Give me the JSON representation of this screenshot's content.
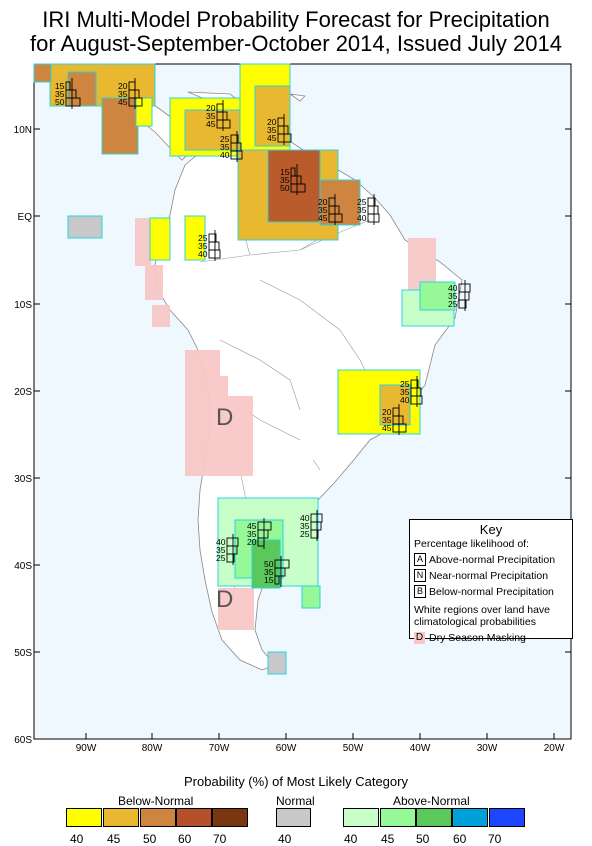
{
  "title": {
    "line1": "IRI Multi-Model Probability Forecast for Precipitation",
    "line2": "for August-September-October 2014, Issued July 2014"
  },
  "axes": {
    "lat_labels": [
      "10N",
      "EQ",
      "10S",
      "20S",
      "30S",
      "40S",
      "50S",
      "60S"
    ],
    "lon_labels": [
      "90W",
      "80W",
      "70W",
      "60W",
      "50W",
      "40W",
      "30W",
      "20W"
    ]
  },
  "map_labels": {
    "dry_north": "D",
    "dry_south": "D"
  },
  "forecast_boxes": [
    {
      "vals": [
        "15",
        "35",
        "50"
      ]
    },
    {
      "vals": [
        "20",
        "35",
        "45"
      ]
    },
    {
      "vals": [
        "20",
        "35",
        "45"
      ]
    },
    {
      "vals": [
        "20",
        "35",
        "45"
      ]
    },
    {
      "vals": [
        "25",
        "35",
        "40"
      ]
    },
    {
      "vals": [
        "15",
        "35",
        "50"
      ]
    },
    {
      "vals": [
        "20",
        "35",
        "45"
      ]
    },
    {
      "vals": [
        "25",
        "35",
        "40"
      ]
    },
    {
      "vals": [
        "25",
        "35",
        "40"
      ]
    },
    {
      "vals": [
        "40",
        "35",
        "25"
      ]
    },
    {
      "vals": [
        "25",
        "35",
        "40"
      ]
    },
    {
      "vals": [
        "20",
        "35",
        "45"
      ]
    },
    {
      "vals": [
        "45",
        "35",
        "20"
      ]
    },
    {
      "vals": [
        "40",
        "35",
        "25"
      ]
    },
    {
      "vals": [
        "40",
        "35",
        "25"
      ]
    },
    {
      "vals": [
        "50",
        "35",
        "15"
      ]
    }
  ],
  "key": {
    "title": "Key",
    "subtitle": "Percentage likelihood of:",
    "items": [
      {
        "letter": "A",
        "text": "Above-normal Precipitation"
      },
      {
        "letter": "N",
        "text": "Near-normal Precipitation"
      },
      {
        "letter": "B",
        "text": "Below-normal Precipitation"
      }
    ],
    "note": "White regions over land have climatological probabilities",
    "dry_letter": "D",
    "dry_text": "Dry Season Masking"
  },
  "legend": {
    "title": "Probability (%) of Most Likely Category",
    "below_label": "Below-Normal",
    "normal_label": "Normal",
    "above_label": "Above-Normal",
    "below_ticks": [
      "40",
      "45",
      "50",
      "60",
      "70"
    ],
    "normal_tick": "40",
    "above_ticks": [
      "40",
      "45",
      "50",
      "60",
      "70"
    ],
    "below_colors": [
      "#ffff00",
      "#e8b830",
      "#cd853f",
      "#b5512a",
      "#7a3511"
    ],
    "normal_color": "#c8c8c8",
    "above_colors": [
      "#c8ffc8",
      "#96f896",
      "#5ac85a",
      "#00a0d8",
      "#1e46ff"
    ]
  }
}
